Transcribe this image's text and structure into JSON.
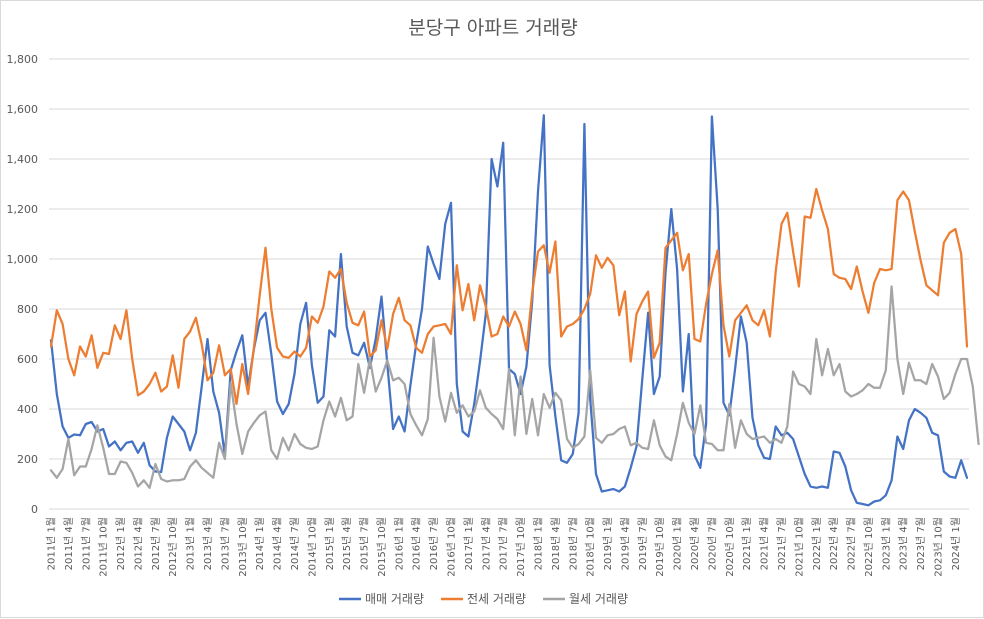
{
  "chart_data": {
    "type": "line",
    "title": "분당구 아파트 거래량",
    "xlabel": "",
    "ylabel": "",
    "ylim": [
      0,
      1800
    ],
    "yticks": [
      "0",
      "200",
      "400",
      "600",
      "800",
      "1,000",
      "1,200",
      "1,400",
      "1,600",
      "1,800"
    ],
    "ytick_values": [
      0,
      200,
      400,
      600,
      800,
      1000,
      1200,
      1400,
      1600,
      1800
    ],
    "grid": true,
    "legend_position": "bottom",
    "x_tick_labels": [
      "2011년 1월",
      "2011년 4월",
      "2011년 7월",
      "2011년 10월",
      "2012년 1월",
      "2012년 4월",
      "2012년 7월",
      "2012년 10월",
      "2013년 1월",
      "2013년 4월",
      "2013년 7월",
      "2013년 10월",
      "2014년 1월",
      "2014년 4월",
      "2014년 7월",
      "2014년 10월",
      "2015년 1월",
      "2015년 4월",
      "2015년 7월",
      "2015년 10월",
      "2016년 1월",
      "2016년 4월",
      "2016년 7월",
      "2016년 10월",
      "2017년 1월",
      "2017년 4월",
      "2017년 7월",
      "2017년 10월",
      "2018년 1월",
      "2018년 4월",
      "2018년 7월",
      "2018년 10월",
      "2019년 1월",
      "2019년 4월",
      "2019년 7월",
      "2019년 10월",
      "2020년 1월",
      "2020년 4월",
      "2020년 7월",
      "2020년 10월",
      "2021년 1월",
      "2021년 4월",
      "2021년 7월",
      "2021년 10월",
      "2022년 1월",
      "2022년 4월",
      "2022년 7월",
      "2022년 10월",
      "2023년 1월",
      "2023년 4월",
      "2023년 7월",
      "2023년 10월",
      "2024년 1월"
    ],
    "series": [
      {
        "name": "매매 거래량",
        "color": "#4472C4",
        "values": [
          675,
          460,
          330,
          285,
          298,
          295,
          340,
          348,
          310,
          320,
          250,
          270,
          235,
          265,
          270,
          225,
          265,
          175,
          150,
          148,
          285,
          370,
          340,
          310,
          235,
          305,
          490,
          680,
          470,
          385,
          215,
          555,
          630,
          695,
          490,
          640,
          755,
          785,
          620,
          430,
          380,
          420,
          540,
          740,
          825,
          575,
          425,
          450,
          715,
          690,
          1020,
          730,
          625,
          615,
          665,
          565,
          680,
          850,
          580,
          320,
          370,
          310,
          495,
          660,
          800,
          1050,
          980,
          920,
          1140,
          1225,
          500,
          310,
          290,
          420,
          590,
          780,
          1400,
          1290,
          1465,
          560,
          540,
          460,
          570,
          830,
          1270,
          1575,
          575,
          370,
          195,
          185,
          220,
          385,
          1540,
          440,
          140,
          70,
          75,
          80,
          70,
          90,
          165,
          250,
          520,
          785,
          460,
          530,
          945,
          1200,
          960,
          470,
          700,
          215,
          165,
          340,
          1570,
          1200,
          425,
          375,
          560,
          770,
          665,
          365,
          255,
          205,
          200,
          330,
          295,
          305,
          280,
          210,
          140,
          90,
          85,
          90,
          85,
          230,
          225,
          170,
          75,
          25,
          20,
          15,
          30,
          35,
          55,
          115,
          290,
          240,
          355,
          400,
          385,
          365,
          305,
          295,
          150,
          130,
          125,
          195,
          125
        ]
      },
      {
        "name": "전세 거래량",
        "color": "#ED7D31",
        "values": [
          650,
          795,
          740,
          600,
          535,
          650,
          610,
          695,
          565,
          625,
          620,
          735,
          680,
          795,
          600,
          455,
          470,
          500,
          545,
          470,
          490,
          615,
          485,
          680,
          710,
          765,
          660,
          515,
          545,
          655,
          535,
          560,
          420,
          580,
          460,
          645,
          855,
          1045,
          800,
          645,
          610,
          605,
          630,
          610,
          645,
          770,
          745,
          810,
          950,
          925,
          960,
          825,
          745,
          735,
          790,
          610,
          635,
          755,
          640,
          780,
          845,
          755,
          735,
          645,
          625,
          700,
          730,
          735,
          740,
          700,
          975,
          795,
          900,
          755,
          895,
          810,
          690,
          700,
          770,
          730,
          790,
          740,
          635,
          865,
          1030,
          1055,
          945,
          1070,
          690,
          730,
          740,
          760,
          800,
          860,
          1015,
          965,
          1005,
          975,
          775,
          870,
          590,
          780,
          830,
          870,
          605,
          665,
          1045,
          1075,
          1105,
          955,
          1020,
          680,
          670,
          820,
          940,
          1035,
          735,
          610,
          755,
          785,
          815,
          755,
          735,
          795,
          690,
          950,
          1140,
          1185,
          1030,
          890,
          1170,
          1165,
          1280,
          1195,
          1120,
          940,
          925,
          920,
          880,
          970,
          870,
          785,
          905,
          960,
          955,
          960,
          1235,
          1270,
          1235,
          1110,
          995,
          895,
          875,
          855,
          1065,
          1105,
          1120,
          1020,
          650
        ]
      },
      {
        "name": "월세 거래량",
        "color": "#A5A5A5",
        "values": [
          155,
          125,
          160,
          280,
          135,
          170,
          170,
          240,
          335,
          245,
          140,
          140,
          190,
          185,
          145,
          90,
          115,
          85,
          180,
          120,
          110,
          115,
          115,
          120,
          170,
          195,
          165,
          145,
          125,
          265,
          200,
          505,
          340,
          220,
          310,
          345,
          375,
          390,
          235,
          200,
          285,
          235,
          300,
          260,
          245,
          240,
          250,
          355,
          430,
          370,
          445,
          355,
          370,
          580,
          465,
          600,
          470,
          525,
          595,
          515,
          525,
          500,
          380,
          335,
          295,
          360,
          685,
          450,
          350,
          465,
          385,
          415,
          370,
          390,
          475,
          405,
          380,
          360,
          320,
          560,
          295,
          530,
          300,
          440,
          295,
          460,
          405,
          465,
          435,
          280,
          245,
          260,
          290,
          555,
          285,
          265,
          295,
          300,
          320,
          330,
          255,
          265,
          245,
          240,
          355,
          255,
          210,
          195,
          300,
          425,
          345,
          300,
          415,
          265,
          260,
          235,
          235,
          420,
          245,
          355,
          300,
          280,
          285,
          290,
          265,
          280,
          265,
          330,
          550,
          500,
          490,
          460,
          680,
          535,
          640,
          535,
          580,
          470,
          450,
          460,
          475,
          500,
          485,
          485,
          555,
          890,
          600,
          460,
          585,
          515,
          515,
          500,
          580,
          530,
          440,
          465,
          540,
          600,
          600,
          490,
          260
        ]
      }
    ]
  }
}
